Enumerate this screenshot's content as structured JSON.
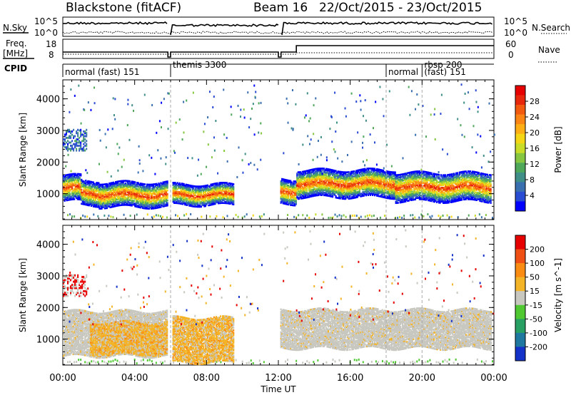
{
  "header": {
    "station": "Blackstone (fitACF)",
    "beam": "Beam 16",
    "dates": "22/Oct/2015 - 23/Oct/2015"
  },
  "panel_labels": {
    "nsky": "N.Sky",
    "nsearch": "N.Search",
    "freq_line1": "Freq.",
    "freq_line2": "[MHz]",
    "nave": "Nave",
    "cpid": "CPID"
  },
  "noise_axis": {
    "top_label": "10^5",
    "bottom_label": "10^0"
  },
  "freq_axis": {
    "ticks": [
      "18",
      "8"
    ]
  },
  "nave_axis": {
    "ticks": [
      "60",
      "0"
    ]
  },
  "cpid_segments": [
    {
      "label": "normal (fast) 151",
      "start_h": 0.0,
      "end_h": 6.0
    },
    {
      "label": "themis 3300",
      "start_h": 6.0,
      "end_h": 18.0
    },
    {
      "label": "normal",
      "start_h": 18.0,
      "end_h": 20.0
    },
    {
      "label": "rbsp 200",
      "start_h": 20.0,
      "end_h": 24.0
    },
    {
      "label": "(fast) 151",
      "start_h": 20.0,
      "end_h": 24.0
    }
  ],
  "x_axis": {
    "title": "Time UT",
    "ticks": [
      "00:00",
      "04:00",
      "08:00",
      "12:00",
      "16:00",
      "20:00",
      "00:00"
    ],
    "range_hours": [
      0,
      24
    ]
  },
  "chart_data": [
    {
      "type": "heatmap",
      "title": "",
      "xlabel": "Time UT",
      "ylabel": "Slant Range [km]",
      "y_ticks": [
        "1000",
        "2000",
        "3000",
        "4000"
      ],
      "ylim": [
        180,
        4600
      ],
      "colorbar": {
        "title": "Power [dB]",
        "ticks": [
          "28",
          "24",
          "20",
          "16",
          "12",
          "8",
          "4"
        ],
        "range": [
          0,
          30
        ],
        "colors": [
          "#0000ff",
          "#2a4cd2",
          "#3a6fb0",
          "#3f8f88",
          "#4fa85a",
          "#86c640",
          "#c8dc28",
          "#f4d614",
          "#fcae14",
          "#fa8414",
          "#f25a10",
          "#e8280c",
          "#e60000"
        ]
      },
      "bands": [
        {
          "start_h": 0.0,
          "end_h": 1.0,
          "center_km": 1150,
          "width_km": 400
        },
        {
          "start_h": 1.0,
          "end_h": 2.0,
          "center_km": 1000,
          "width_km": 380
        },
        {
          "start_h": 2.0,
          "end_h": 5.8,
          "center_km": 950,
          "width_km": 380
        },
        {
          "start_h": 6.1,
          "end_h": 9.5,
          "center_km": 950,
          "width_km": 320
        },
        {
          "start_h": 12.1,
          "end_h": 13.0,
          "center_km": 1050,
          "width_km": 380
        },
        {
          "start_h": 13.0,
          "end_h": 18.5,
          "center_km": 1300,
          "width_km": 420
        },
        {
          "start_h": 18.5,
          "end_h": 23.8,
          "center_km": 1200,
          "width_km": 450
        }
      ]
    },
    {
      "type": "heatmap",
      "title": "",
      "xlabel": "Time UT",
      "ylabel": "Slant Range [km]",
      "y_ticks": [
        "1000",
        "2000",
        "3000",
        "4000"
      ],
      "ylim": [
        180,
        4600
      ],
      "colorbar": {
        "title": "Velocity [m s^-1]",
        "ticks": [
          "200",
          "100",
          "50",
          "15",
          "-15",
          "-50",
          "-100",
          "-200"
        ],
        "range": [
          -250,
          250
        ],
        "colors": [
          "#1432c8",
          "#1e78a0",
          "#28a064",
          "#50c832",
          "#c8c8c0",
          "#f4b428",
          "#fa8c14",
          "#f05014",
          "#e60000"
        ]
      },
      "bands": [
        {
          "start_h": 0.0,
          "end_h": 5.8,
          "center_km": 1150,
          "width_km": 700,
          "tone": "gray"
        },
        {
          "start_h": 1.5,
          "end_h": 5.8,
          "center_km": 1000,
          "width_km": 500,
          "tone": "orange"
        },
        {
          "start_h": 6.1,
          "end_h": 9.5,
          "center_km": 950,
          "width_km": 700,
          "tone": "orange"
        },
        {
          "start_h": 12.1,
          "end_h": 23.8,
          "center_km": 1300,
          "width_km": 600,
          "tone": "gray"
        }
      ]
    }
  ]
}
